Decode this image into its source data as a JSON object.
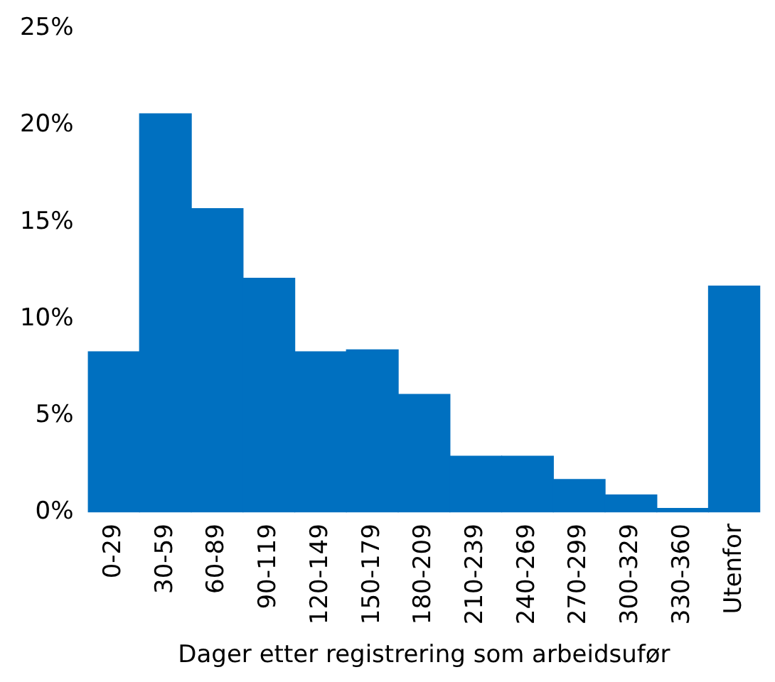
{
  "chart_data": {
    "type": "bar",
    "xlabel": "Dager etter registrering som arbeidsufør",
    "categories": [
      "0-29",
      "30-59",
      "60-89",
      "90-119",
      "120-149",
      "150-179",
      "180-209",
      "210-239",
      "240-269",
      "270-299",
      "300-329",
      "330-360",
      "Utenfor"
    ],
    "values": [
      8.3,
      20.6,
      15.7,
      12.1,
      8.3,
      8.4,
      6.1,
      2.9,
      2.9,
      1.7,
      0.9,
      0.2,
      11.7
    ],
    "color": "#0070c0",
    "ylim": [
      0,
      25
    ],
    "yticks": [
      {
        "value": 0,
        "label": "0%"
      },
      {
        "value": 5,
        "label": "5%"
      },
      {
        "value": 10,
        "label": "10%"
      },
      {
        "value": 15,
        "label": "15%"
      },
      {
        "value": 20,
        "label": "20%"
      },
      {
        "value": 25,
        "label": "25%"
      }
    ],
    "grid": false,
    "legend": false
  }
}
